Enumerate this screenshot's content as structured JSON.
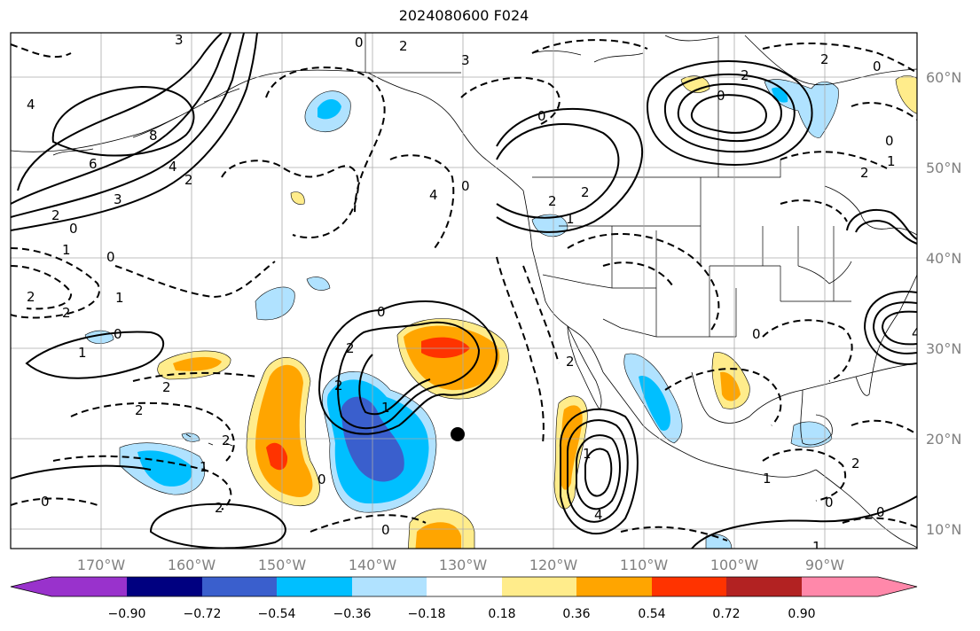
{
  "title": "2024080600 F024",
  "lon_labels": [
    "170°W",
    "160°W",
    "150°W",
    "140°W",
    "130°W",
    "120°W",
    "110°W",
    "100°W",
    "90°W"
  ],
  "lat_labels": [
    "60°N",
    "50°N",
    "40°N",
    "30°N",
    "20°N",
    "10°N"
  ],
  "colorbar": {
    "ticks": [
      "−0.90",
      "−0.72",
      "−0.54",
      "−0.36",
      "−0.18",
      "0.18",
      "0.36",
      "0.54",
      "0.72",
      "0.90"
    ],
    "colors": [
      "#9932cc",
      "#000080",
      "#3a5fcd",
      "#00bfff",
      "#b0e2ff",
      "#ffffff",
      "#ffec8b",
      "#ffa500",
      "#ff3300",
      "#b22222",
      "#ff88aa"
    ]
  },
  "contour_labels": [
    "4",
    "3",
    "8",
    "6",
    "4",
    "2",
    "3",
    "2",
    "0",
    "1",
    "0",
    "2",
    "2",
    "1",
    "0",
    "1",
    "2",
    "2",
    "0",
    "2",
    "2",
    "1",
    "0",
    "0",
    "2",
    "0",
    "0",
    "2",
    "2",
    "1",
    "0",
    "0",
    "3",
    "4",
    "2",
    "2",
    "1",
    "0",
    "2",
    "0",
    "0",
    "2",
    "1",
    "2",
    "0",
    "2",
    "1",
    "1",
    "2",
    "4",
    "0",
    "0",
    "4",
    "1"
  ],
  "marker": "storm-center-dot"
}
